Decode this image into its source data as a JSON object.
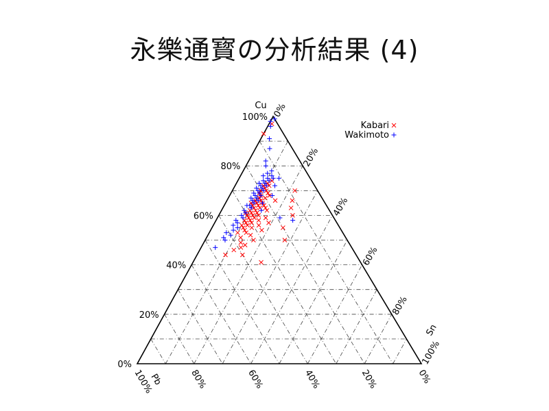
{
  "slide": {
    "title": "永樂通寳の分析結果 (4)"
  },
  "chart_data": {
    "type": "ternary-scatter",
    "title": "永樂通寳の分析結果 (4)",
    "vertices": {
      "top": "Cu",
      "bottom_left": "Pb",
      "bottom_right": "Sn"
    },
    "ticks": [
      0,
      20,
      40,
      60,
      80,
      100
    ],
    "tick_suffix": "%",
    "grid": true,
    "legend_position": "top-right",
    "colors": {
      "Kabari": "#ff0000",
      "Wakimoto": "#0000ff"
    },
    "series": [
      {
        "name": "Kabari",
        "marker": "x",
        "points": [
          {
            "cu": 97,
            "sn": 1
          },
          {
            "cu": 93,
            "sn": 0
          },
          {
            "cu": 74,
            "sn": 12
          },
          {
            "cu": 73,
            "sn": 11
          },
          {
            "cu": 72,
            "sn": 12
          },
          {
            "cu": 72,
            "sn": 10
          },
          {
            "cu": 71,
            "sn": 11
          },
          {
            "cu": 70,
            "sn": 12
          },
          {
            "cu": 70,
            "sn": 10
          },
          {
            "cu": 69,
            "sn": 13
          },
          {
            "cu": 69,
            "sn": 10
          },
          {
            "cu": 68,
            "sn": 11
          },
          {
            "cu": 68,
            "sn": 14
          },
          {
            "cu": 67,
            "sn": 13
          },
          {
            "cu": 67,
            "sn": 11
          },
          {
            "cu": 66,
            "sn": 12
          },
          {
            "cu": 66,
            "sn": 10
          },
          {
            "cu": 66,
            "sn": 17
          },
          {
            "cu": 65,
            "sn": 13
          },
          {
            "cu": 65,
            "sn": 11
          },
          {
            "cu": 65,
            "sn": 9
          },
          {
            "cu": 64,
            "sn": 12
          },
          {
            "cu": 64,
            "sn": 14
          },
          {
            "cu": 64,
            "sn": 10
          },
          {
            "cu": 63,
            "sn": 13
          },
          {
            "cu": 63,
            "sn": 11
          },
          {
            "cu": 63,
            "sn": 15
          },
          {
            "cu": 62,
            "sn": 12
          },
          {
            "cu": 62,
            "sn": 10
          },
          {
            "cu": 62,
            "sn": 16
          },
          {
            "cu": 61,
            "sn": 13
          },
          {
            "cu": 61,
            "sn": 9
          },
          {
            "cu": 61,
            "sn": 11
          },
          {
            "cu": 60,
            "sn": 12
          },
          {
            "cu": 60,
            "sn": 14
          },
          {
            "cu": 60,
            "sn": 10
          },
          {
            "cu": 59,
            "sn": 11
          },
          {
            "cu": 59,
            "sn": 13
          },
          {
            "cu": 59,
            "sn": 17
          },
          {
            "cu": 58,
            "sn": 12
          },
          {
            "cu": 58,
            "sn": 10
          },
          {
            "cu": 58,
            "sn": 15
          },
          {
            "cu": 57,
            "sn": 11
          },
          {
            "cu": 57,
            "sn": 13
          },
          {
            "cu": 57,
            "sn": 19
          },
          {
            "cu": 56,
            "sn": 12
          },
          {
            "cu": 56,
            "sn": 10
          },
          {
            "cu": 56,
            "sn": 16
          },
          {
            "cu": 55,
            "sn": 11
          },
          {
            "cu": 55,
            "sn": 14
          },
          {
            "cu": 54,
            "sn": 12
          },
          {
            "cu": 54,
            "sn": 18
          },
          {
            "cu": 53,
            "sn": 13
          },
          {
            "cu": 53,
            "sn": 10
          },
          {
            "cu": 52,
            "sn": 15
          },
          {
            "cu": 51,
            "sn": 12
          },
          {
            "cu": 50,
            "sn": 17
          },
          {
            "cu": 49,
            "sn": 13
          },
          {
            "cu": 48,
            "sn": 15
          },
          {
            "cu": 47,
            "sn": 14
          },
          {
            "cu": 46,
            "sn": 12
          },
          {
            "cu": 44,
            "sn": 16
          },
          {
            "cu": 70,
            "sn": 22
          },
          {
            "cu": 66,
            "sn": 23
          },
          {
            "cu": 63,
            "sn": 24
          },
          {
            "cu": 60,
            "sn": 26
          },
          {
            "cu": 55,
            "sn": 25
          },
          {
            "cu": 50,
            "sn": 28
          },
          {
            "cu": 41,
            "sn": 24
          },
          {
            "cu": 44,
            "sn": 10
          }
        ]
      },
      {
        "name": "Wakimoto",
        "marker": "+",
        "points": [
          {
            "cu": 99,
            "sn": 1
          },
          {
            "cu": 98,
            "sn": 0
          },
          {
            "cu": 96,
            "sn": 1
          },
          {
            "cu": 91,
            "sn": 3
          },
          {
            "cu": 87,
            "sn": 5
          },
          {
            "cu": 78,
            "sn": 10
          },
          {
            "cu": 77,
            "sn": 9
          },
          {
            "cu": 76,
            "sn": 11
          },
          {
            "cu": 76,
            "sn": 8
          },
          {
            "cu": 75,
            "sn": 10
          },
          {
            "cu": 75,
            "sn": 12
          },
          {
            "cu": 74,
            "sn": 9
          },
          {
            "cu": 74,
            "sn": 11
          },
          {
            "cu": 73,
            "sn": 10
          },
          {
            "cu": 73,
            "sn": 8
          },
          {
            "cu": 72,
            "sn": 11
          },
          {
            "cu": 72,
            "sn": 9
          },
          {
            "cu": 71,
            "sn": 10
          },
          {
            "cu": 71,
            "sn": 8
          },
          {
            "cu": 70,
            "sn": 11
          },
          {
            "cu": 70,
            "sn": 9
          },
          {
            "cu": 69,
            "sn": 10
          },
          {
            "cu": 69,
            "sn": 8
          },
          {
            "cu": 68,
            "sn": 9
          },
          {
            "cu": 68,
            "sn": 11
          },
          {
            "cu": 67,
            "sn": 10
          },
          {
            "cu": 67,
            "sn": 8
          },
          {
            "cu": 66,
            "sn": 9
          },
          {
            "cu": 66,
            "sn": 11
          },
          {
            "cu": 65,
            "sn": 10
          },
          {
            "cu": 64,
            "sn": 8
          },
          {
            "cu": 64,
            "sn": 9
          },
          {
            "cu": 63,
            "sn": 10
          },
          {
            "cu": 62,
            "sn": 8
          },
          {
            "cu": 61,
            "sn": 9
          },
          {
            "cu": 60,
            "sn": 8
          },
          {
            "cu": 59,
            "sn": 9
          },
          {
            "cu": 58,
            "sn": 7
          },
          {
            "cu": 57,
            "sn": 8
          },
          {
            "cu": 56,
            "sn": 7
          },
          {
            "cu": 55,
            "sn": 9
          },
          {
            "cu": 54,
            "sn": 8
          },
          {
            "cu": 53,
            "sn": 6
          },
          {
            "cu": 52,
            "sn": 8
          },
          {
            "cu": 51,
            "sn": 6
          },
          {
            "cu": 50,
            "sn": 7
          },
          {
            "cu": 47,
            "sn": 5
          },
          {
            "cu": 75,
            "sn": 14
          },
          {
            "cu": 72,
            "sn": 14
          },
          {
            "cu": 68,
            "sn": 15
          },
          {
            "cu": 65,
            "sn": 13
          },
          {
            "cu": 62,
            "sn": 14
          },
          {
            "cu": 59,
            "sn": 22
          },
          {
            "cu": 58,
            "sn": 27
          },
          {
            "cu": 80,
            "sn": 7
          },
          {
            "cu": 82,
            "sn": 6
          }
        ]
      }
    ]
  }
}
